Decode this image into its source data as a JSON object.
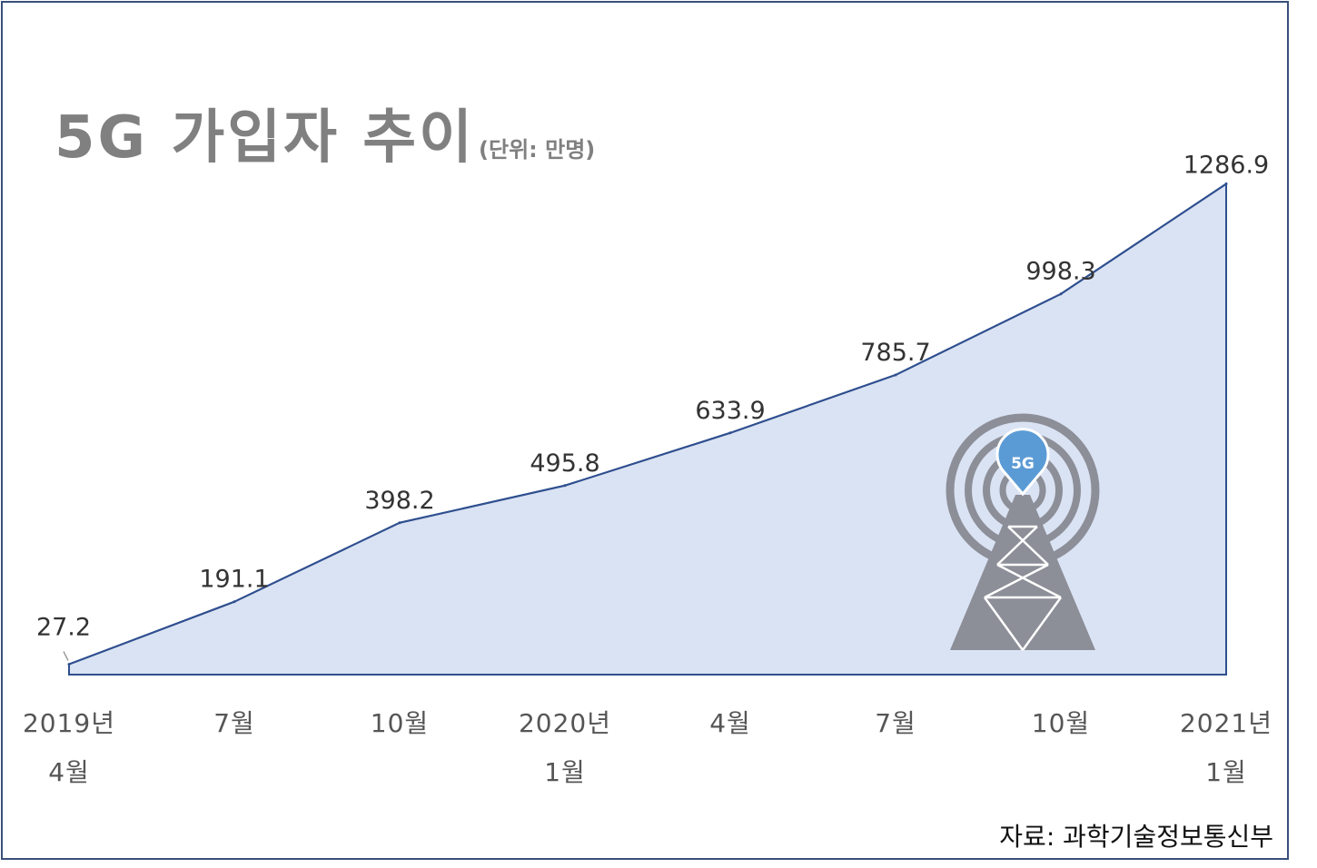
{
  "title": "5G 가입자 추이",
  "unit": "(단위: 만명)",
  "source": "자료: 과학기술정보통신부",
  "icon": "5g-tower-icon",
  "icon_badge": "5G",
  "colors": {
    "area_fill": "#dae3f3",
    "line": "#2f4f8f",
    "title": "#808080",
    "tower": "#8c8e98",
    "badge": "#5b9bd5"
  },
  "chart_data": {
    "type": "area",
    "categories": [
      [
        "2019년",
        "4월"
      ],
      [
        "7월"
      ],
      [
        "10월"
      ],
      [
        "2020년",
        "1월"
      ],
      [
        "4월"
      ],
      [
        "7월"
      ],
      [
        "10월"
      ],
      [
        "2021년",
        "1월"
      ]
    ],
    "values": [
      27.2,
      191.1,
      398.2,
      495.8,
      633.9,
      785.7,
      998.3,
      1286.9
    ],
    "value_labels": [
      "27.2",
      "191.1",
      "398.2",
      "495.8",
      "633.9",
      "785.7",
      "998.3",
      "1286.9"
    ],
    "title": "5G 가입자 추이",
    "unit": "(단위: 만명)",
    "ylim": [
      0,
      1400
    ],
    "grid": false,
    "legend": "none"
  }
}
